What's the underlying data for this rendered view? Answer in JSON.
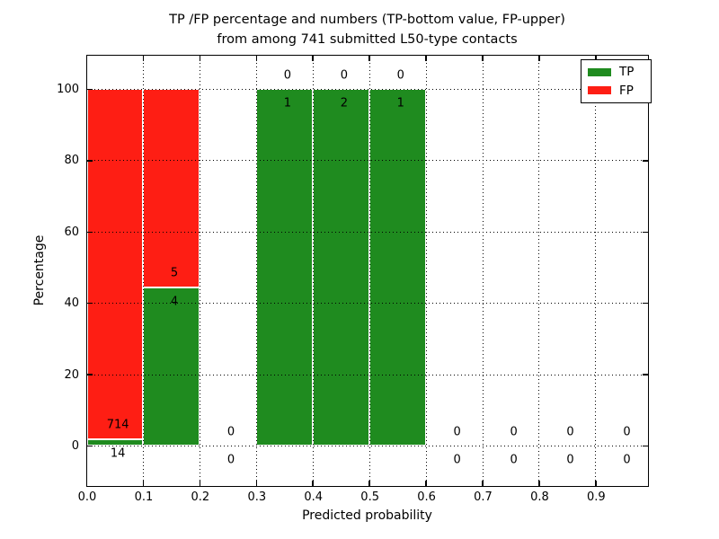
{
  "title": {
    "line1": "TP /FP percentage and numbers (TP-bottom value, FP-upper)",
    "line2": "from among 741 submitted L50-type contacts"
  },
  "chart_data": {
    "type": "bar",
    "stacked": true,
    "title": "TP /FP percentage and numbers (TP-bottom value, FP-upper) from among 741 submitted L50-type contacts",
    "xlabel": "Predicted probability",
    "ylabel": "Percentage",
    "total_submitted_contacts": 741,
    "contact_type": "L50-type",
    "grid": "dotted",
    "axes": {
      "xlim": [
        0,
        0.99
      ],
      "ylim": [
        -10.83,
        109.57
      ]
    },
    "x_ticks": {
      "values": [
        0.0,
        0.1,
        0.2,
        0.3,
        0.4,
        0.5,
        0.6,
        0.7,
        0.8,
        0.9
      ],
      "labels": [
        "0.0",
        "0.1",
        "0.2",
        "0.3",
        "0.4",
        "0.5",
        "0.6",
        "0.7",
        "0.8",
        "0.9"
      ]
    },
    "y_ticks": {
      "values": [
        0,
        20,
        40,
        60,
        80,
        100
      ],
      "labels": [
        "0",
        "20",
        "40",
        "60",
        "80",
        "100"
      ]
    },
    "bin_edges": [
      0.0,
      0.1,
      0.2,
      0.3,
      0.4,
      0.5,
      0.6,
      0.7,
      0.8,
      0.9,
      1.0
    ],
    "series": [
      {
        "name": "TP",
        "color": "#1f8b1f",
        "counts": [
          14,
          4,
          0,
          1,
          2,
          1,
          0,
          0,
          0,
          0
        ],
        "percentages": [
          1.923,
          44.444,
          0,
          100,
          100,
          100,
          0,
          0,
          0,
          0
        ]
      },
      {
        "name": "FP",
        "color": "#fe1e14",
        "counts": [
          714,
          5,
          0,
          0,
          0,
          0,
          0,
          0,
          0,
          0
        ],
        "percentages": [
          98.077,
          55.556,
          0,
          0,
          0,
          0,
          0,
          0,
          0,
          0
        ]
      }
    ],
    "bar_edge_color": "#ffffff",
    "count_label_offset_pct": 4,
    "count_label_offset_x": 0.005,
    "legend": {
      "location": "upper right",
      "entries": [
        {
          "label": "TP",
          "color": "#1f8b1f"
        },
        {
          "label": "FP",
          "color": "#fe1e14"
        }
      ]
    }
  }
}
